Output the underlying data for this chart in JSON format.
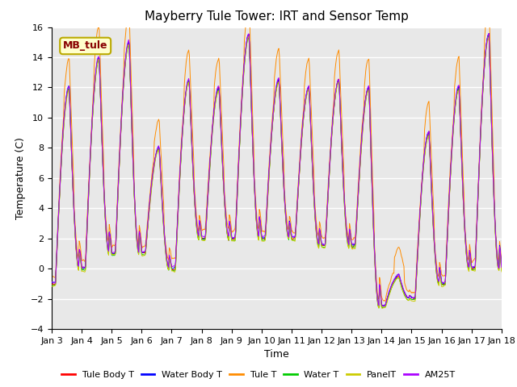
{
  "title": "Mayberry Tule Tower: IRT and Sensor Temp",
  "xlabel": "Time",
  "ylabel": "Temperature (C)",
  "ylim": [
    -4,
    16
  ],
  "yticks": [
    -4,
    -2,
    0,
    2,
    4,
    6,
    8,
    10,
    12,
    14,
    16
  ],
  "x_labels": [
    "Jan 3",
    "Jan 4",
    "Jan 5",
    "Jan 6",
    "Jan 7",
    "Jan 8",
    "Jan 9",
    "Jan 10",
    "Jan 11",
    "Jan 12",
    "Jan 13",
    "Jan 14",
    "Jan 15",
    "Jan 16",
    "Jan 17",
    "Jan 18"
  ],
  "series_colors": {
    "Tule Body T": "#ff0000",
    "Water Body T": "#0000ff",
    "Tule T": "#ff8c00",
    "Water T": "#00cc00",
    "PanelT": "#cccc00",
    "AM25T": "#aa00ff"
  },
  "legend_box_color": "#ffffcc",
  "legend_box_edge": "#bbaa00",
  "legend_text": "MB_tule",
  "legend_text_color": "#880000",
  "bg_color": "#e8e8e8",
  "grid_color": "#ffffff",
  "title_fontsize": 11,
  "axis_fontsize": 9,
  "tick_fontsize": 8
}
